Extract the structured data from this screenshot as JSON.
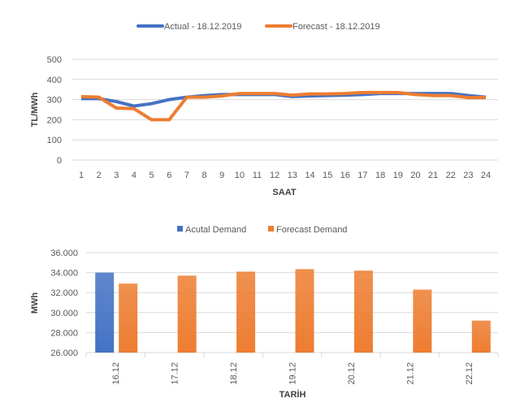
{
  "chart_data": [
    {
      "type": "line",
      "title": "",
      "xlabel": "SAAT",
      "ylabel": "TL/MWh",
      "ylim": [
        0,
        500
      ],
      "yticks": [
        0,
        100,
        200,
        300,
        400,
        500
      ],
      "x": [
        1,
        2,
        3,
        4,
        5,
        6,
        7,
        8,
        9,
        10,
        11,
        12,
        13,
        14,
        15,
        16,
        17,
        18,
        19,
        20,
        21,
        22,
        23,
        24
      ],
      "grid": true,
      "legend": "top",
      "series": [
        {
          "name": "Actual - 18.12.2019",
          "color": "#4472C4",
          "values": [
            305,
            305,
            290,
            268,
            280,
            300,
            312,
            320,
            325,
            325,
            325,
            325,
            315,
            318,
            320,
            322,
            325,
            330,
            330,
            330,
            330,
            330,
            320,
            312
          ]
        },
        {
          "name": "Forecast - 18.12.2019",
          "color": "#ED7D31",
          "values": [
            315,
            312,
            258,
            255,
            200,
            200,
            312,
            312,
            318,
            330,
            330,
            330,
            322,
            328,
            328,
            330,
            335,
            335,
            335,
            325,
            320,
            320,
            310,
            310
          ]
        }
      ]
    },
    {
      "type": "bar",
      "title": "",
      "xlabel": "TARİH",
      "ylabel": "MWh",
      "ylim": [
        26000,
        36000
      ],
      "yticks": [
        "26.000",
        "28.000",
        "30.000",
        "32.000",
        "34.000",
        "36.000"
      ],
      "categories": [
        "16.12",
        "17.12",
        "18.12",
        "19.12",
        "20.12",
        "21.12",
        "22.12"
      ],
      "grid": true,
      "legend": "top",
      "series": [
        {
          "name": "Acutal Demand",
          "color": "#4472C4",
          "values": [
            34000,
            null,
            null,
            null,
            null,
            null,
            null
          ]
        },
        {
          "name": "Forecast Demand",
          "color": "#ED7D31",
          "values": [
            32900,
            33700,
            34100,
            34350,
            34200,
            32300,
            29200
          ]
        }
      ]
    }
  ]
}
